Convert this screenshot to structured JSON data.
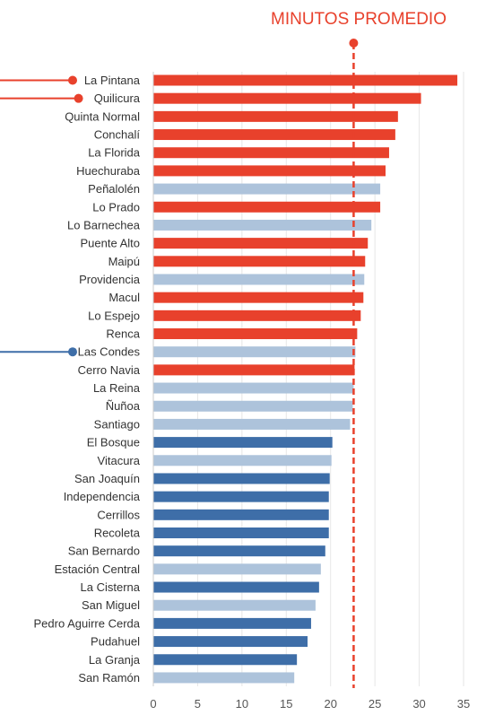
{
  "chart_data": {
    "type": "bar",
    "orientation": "horizontal",
    "title": "MINUTOS PROMEDIO",
    "xlim": [
      0,
      35
    ],
    "x_ticks": [
      0,
      5,
      10,
      15,
      20,
      25,
      30,
      35
    ],
    "average_line": 22.6,
    "grid": "vertical",
    "categories": [
      "La Pintana",
      "Quilicura",
      "Quinta Normal",
      "Conchalí",
      "La Florida",
      "Huechuraba",
      "Peñalolén",
      "Lo Prado",
      "Lo Barnechea",
      "Puente Alto",
      "Maipú",
      "Providencia",
      "Macul",
      "Lo Espejo",
      "Renca",
      "Las Condes",
      "Cerro Navia",
      "La Reina",
      "Ñuñoa",
      "Santiago",
      "El Bosque",
      "Vitacura",
      "San Joaquín",
      "Independencia",
      "Cerrillos",
      "Recoleta",
      "San Bernardo",
      "Estación Central",
      "La Cisterna",
      "San Miguel",
      "Pedro Aguirre Cerda",
      "Pudahuel",
      "La Granja",
      "San Ramón"
    ],
    "values": [
      34.3,
      30.2,
      27.6,
      27.3,
      26.6,
      26.2,
      25.6,
      25.6,
      24.6,
      24.2,
      23.9,
      23.8,
      23.7,
      23.4,
      23.0,
      22.8,
      22.7,
      22.6,
      22.5,
      22.2,
      20.2,
      20.1,
      19.9,
      19.8,
      19.8,
      19.8,
      19.4,
      18.9,
      18.7,
      18.3,
      17.8,
      17.4,
      16.2,
      15.9
    ],
    "bar_groups": [
      "red",
      "red",
      "red",
      "red",
      "red",
      "red",
      "light",
      "red",
      "light",
      "red",
      "red",
      "light",
      "red",
      "red",
      "red",
      "light",
      "red",
      "light",
      "light",
      "light",
      "blue",
      "light",
      "blue",
      "blue",
      "blue",
      "blue",
      "blue",
      "light",
      "blue",
      "light",
      "blue",
      "blue",
      "blue",
      "light"
    ],
    "colors": {
      "red": "#e8412c",
      "blue": "#3e6ea8",
      "light": "#adc3db",
      "average_line": "#e8412c",
      "grid": "#e6e6e6",
      "axis": "#cccccc"
    },
    "highlighted": [
      {
        "category": "La Pintana",
        "color": "#e8412c"
      },
      {
        "category": "Quilicura",
        "color": "#e8412c"
      },
      {
        "category": "Las Condes",
        "color": "#3e6ea8"
      }
    ]
  }
}
